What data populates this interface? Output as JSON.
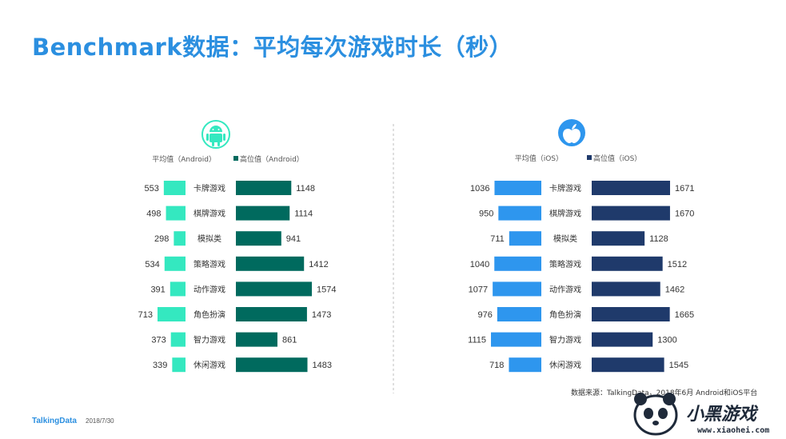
{
  "title": "Benchmark数据：平均每次游戏时长（秒）",
  "footer": {
    "brand": "TalkingData",
    "date": "2018/7/30"
  },
  "source": "数据来源：TalkingData，2018年6月 Android和iOS平台",
  "watermark": {
    "logo": "小黑游戏",
    "url": "www.xiaohei.com"
  },
  "icons": {
    "android": "android-icon",
    "ios": "apple-icon"
  },
  "colors": {
    "android_avg": "#34e8c0",
    "android_high": "#006a5e",
    "ios_avg": "#2e96ee",
    "ios_high": "#1f3a6b",
    "title": "#2b8fe0"
  },
  "chart_data": [
    {
      "type": "bar",
      "platform": "Android",
      "categories": [
        "卡牌游戏",
        "棋牌游戏",
        "模拟类",
        "策略游戏",
        "动作游戏",
        "角色扮演",
        "智力游戏",
        "休闲游戏"
      ],
      "series": [
        {
          "name": "平均值（Android）",
          "values": [
            553,
            498,
            298,
            534,
            391,
            713,
            373,
            339
          ]
        },
        {
          "name": "高位值（Android）",
          "values": [
            1148,
            1114,
            941,
            1412,
            1574,
            1473,
            861,
            1483
          ]
        }
      ],
      "legend": "top",
      "grid": false
    },
    {
      "type": "bar",
      "platform": "iOS",
      "categories": [
        "卡牌游戏",
        "棋牌游戏",
        "模拟类",
        "策略游戏",
        "动作游戏",
        "角色扮演",
        "智力游戏",
        "休闲游戏"
      ],
      "series": [
        {
          "name": "平均值（iOS）",
          "values": [
            1036,
            950,
            711,
            1040,
            1077,
            976,
            1115,
            718
          ]
        },
        {
          "name": "高位值（iOS）",
          "values": [
            1671,
            1670,
            1128,
            1512,
            1462,
            1665,
            1300,
            1545
          ]
        }
      ],
      "legend": "top",
      "grid": false
    }
  ]
}
